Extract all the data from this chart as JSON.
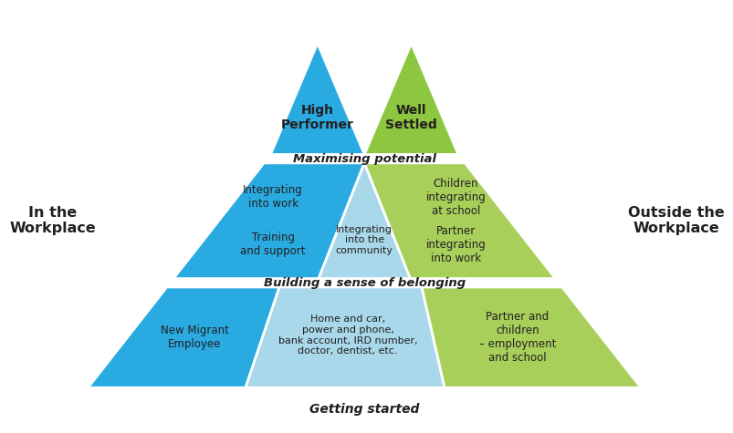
{
  "bg_color": "#ffffff",
  "cyan": "#29ABE2",
  "light_cyan": "#A8D8EA",
  "green": "#8DC63F",
  "light_green": "#8DC63F",
  "dark_text": "#231F20",
  "mid_label": "Maximising potential",
  "bottom_label": "Building a sense of belonging",
  "base_label": "Getting started",
  "left_side_label": "In the\nWorkplace",
  "right_side_label": "Outside the\nWorkplace",
  "bot_left_text": "New Migrant\nEmployee",
  "bot_center_text": "Home and car,\npower and phone,\nbank account, IRD number,\ndoctor, dentist, etc.",
  "bot_right_text": "Partner and\nchildren\n– employment\nand school",
  "mid_left_text1": "Integrating\ninto work",
  "mid_left_text2": "Training\nand support",
  "mid_center_text": "Integrating\ninto the\ncommunity",
  "mid_right_text1": "Children\nintegrating\nat school",
  "mid_right_text2": "Partner\nintegrating\ninto work",
  "top_left_text": "High\nPerformer",
  "top_right_text": "Well\nSettled"
}
